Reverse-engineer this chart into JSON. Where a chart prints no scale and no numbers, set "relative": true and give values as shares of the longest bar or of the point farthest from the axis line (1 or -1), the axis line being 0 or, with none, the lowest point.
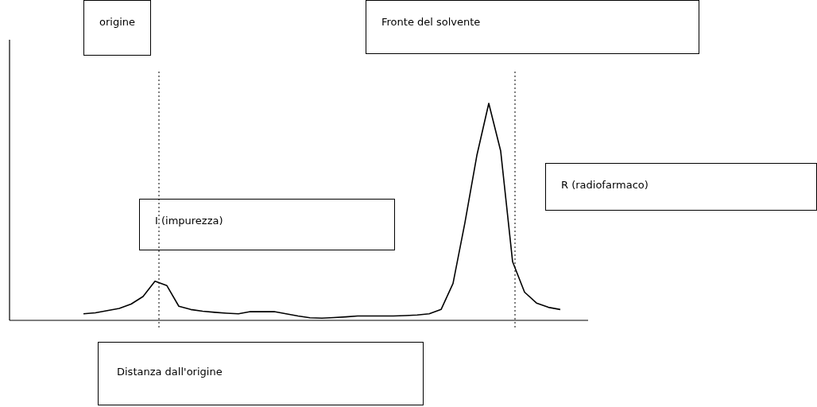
{
  "chart_data": {
    "type": "line",
    "relative": true,
    "xlabel": "Distanza dall'origine",
    "annotations": [
      "origine",
      "Fronte del solvente",
      "I (impurezza)",
      "R (radiofarmaco)"
    ],
    "categories": [
      null,
      null,
      null,
      null,
      null,
      null,
      null,
      null,
      null,
      null,
      null,
      null,
      null,
      null,
      null,
      null,
      null,
      null,
      null,
      null,
      null,
      null,
      null,
      null,
      null,
      null,
      null,
      null,
      null,
      null,
      null,
      null,
      null,
      null,
      null,
      null,
      null,
      null,
      null,
      null,
      null
    ],
    "series": [
      {
        "color": "#000000",
        "values": [
          0.03,
          0.035,
          0.045,
          0.055,
          0.075,
          0.11,
          0.18,
          0.16,
          0.065,
          0.05,
          0.042,
          0.037,
          0.033,
          0.03,
          0.04,
          0.04,
          0.04,
          0.03,
          0.02,
          0.012,
          0.01,
          0.013,
          0.016,
          0.02,
          0.02,
          0.02,
          0.02,
          0.022,
          0.025,
          0.03,
          0.05,
          0.17,
          0.45,
          0.76,
          1,
          0.78,
          0.27,
          0.13,
          0.08,
          0.06,
          0.05
        ]
      }
    ]
  }
}
